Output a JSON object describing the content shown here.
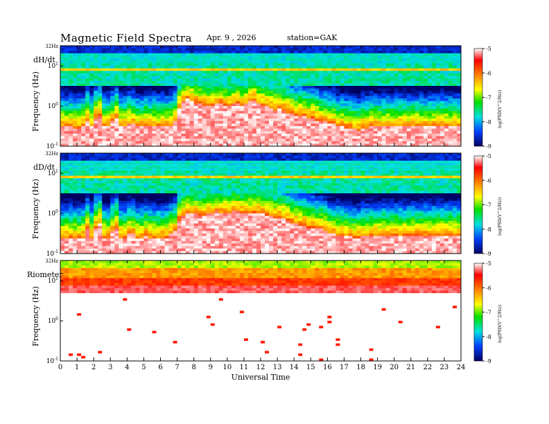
{
  "header": {
    "title": "Magnetic  Field  Spectra",
    "date": "Apr. 9  , 2026",
    "station": "station=GAK"
  },
  "chart_data": [
    {
      "type": "heatmap",
      "panel_label": "dH/dt",
      "ylabel": "Frequency  (Hz)",
      "y_ticks": [
        "32Hz",
        "10^1",
        "10^0",
        "10^-1"
      ],
      "y_scale": "log",
      "ylim": [
        0.1,
        32
      ],
      "xlim": [
        0,
        24
      ],
      "colorbar": {
        "label": "log(PSD(V^2/Hz))",
        "ticks": [
          -5,
          -6,
          -7,
          -8,
          -9
        ],
        "range": [
          -9,
          -5
        ],
        "colormap": "blue-cyan-green-yellow-red-white"
      },
      "cutoff_hz": [
        0.3,
        0.3,
        0.3,
        0.28,
        0.28,
        0.3,
        0.45,
        0.3,
        0.5,
        0.6,
        0.3,
        0.3,
        0.4,
        0.5,
        0.3,
        0.3,
        0.35,
        0.35,
        0.3,
        0.3,
        0.32,
        0.3,
        0.3,
        0.3,
        0.3,
        0.3,
        0.32,
        0.4,
        0.9,
        1.3,
        1.5,
        1.4,
        1.2,
        1.1,
        1.0,
        0.95,
        1.0,
        1.1,
        1.2,
        1.0,
        0.95,
        1.1,
        1.2,
        1.0,
        1.1,
        1.3,
        1.4,
        1.1,
        1.0,
        0.95,
        0.9,
        0.8,
        0.85,
        0.8,
        0.7,
        0.65,
        0.6,
        0.55,
        0.55,
        0.5,
        0.5,
        0.45,
        0.4,
        0.4,
        0.35,
        0.35,
        0.3,
        0.3,
        0.28,
        0.28,
        0.26,
        0.25,
        0.28,
        0.28,
        0.3,
        0.3,
        0.3,
        0.3,
        0.3,
        0.3,
        0.3,
        0.3,
        0.3,
        0.3,
        0.3,
        0.3,
        0.3,
        0.3,
        0.3,
        0.3,
        0.3,
        0.3,
        0.3,
        0.3,
        0.3,
        0.3
      ],
      "bands": {
        "line_8hz": 8,
        "line_11hz": 11,
        "upper_dark_hz": 20
      }
    },
    {
      "type": "heatmap",
      "panel_label": "dD/dt",
      "ylabel": "Frequency  (Hz)",
      "y_ticks": [
        "32Hz",
        "10^1",
        "10^0",
        "10^-1"
      ],
      "y_scale": "log",
      "ylim": [
        0.1,
        32
      ],
      "xlim": [
        0,
        24
      ],
      "colorbar": {
        "label": "log(PSD(V^2/Hz))",
        "ticks": [
          -5,
          -6,
          -7,
          -8,
          -9
        ],
        "range": [
          -9,
          -5
        ],
        "colormap": "blue-cyan-green-yellow-red-white"
      },
      "cutoff_hz": [
        0.25,
        0.25,
        0.25,
        0.24,
        0.24,
        0.25,
        0.4,
        0.25,
        0.45,
        0.55,
        0.25,
        0.25,
        0.35,
        0.45,
        0.25,
        0.25,
        0.3,
        0.3,
        0.25,
        0.25,
        0.28,
        0.25,
        0.25,
        0.25,
        0.25,
        0.25,
        0.3,
        0.35,
        0.7,
        0.9,
        1.0,
        1.0,
        0.95,
        0.9,
        0.9,
        0.95,
        1.0,
        1.1,
        1.0,
        1.0,
        0.95,
        1.1,
        1.1,
        1.0,
        1.0,
        1.0,
        1.05,
        1.0,
        0.95,
        0.9,
        0.85,
        0.8,
        0.8,
        0.75,
        0.65,
        0.6,
        0.55,
        0.5,
        0.5,
        0.45,
        0.45,
        0.4,
        0.4,
        0.35,
        0.3,
        0.3,
        0.28,
        0.28,
        0.26,
        0.26,
        0.24,
        0.24,
        0.26,
        0.26,
        0.28,
        0.28,
        0.28,
        0.28,
        0.28,
        0.28,
        0.28,
        0.28,
        0.28,
        0.28,
        0.28,
        0.28,
        0.28,
        0.28,
        0.28,
        0.28,
        0.28,
        0.28,
        0.28,
        0.28,
        0.28,
        0.28
      ],
      "bands": {
        "line_8hz": 8,
        "line_11hz": 11,
        "upper_dark_hz": 20
      }
    },
    {
      "type": "heatmap",
      "panel_label": "Riometer",
      "ylabel": "Frequency  (Hz)",
      "y_ticks": [
        "32Hz",
        "10^1",
        "10^0",
        "10^-1"
      ],
      "y_scale": "log",
      "ylim": [
        0.1,
        32
      ],
      "xlim": [
        0,
        24
      ],
      "xlabel": "Universal  Time",
      "x_ticks": [
        0,
        1,
        2,
        3,
        4,
        5,
        6,
        7,
        8,
        9,
        10,
        11,
        12,
        13,
        14,
        15,
        16,
        17,
        18,
        19,
        20,
        21,
        22,
        23,
        24
      ],
      "colorbar": {
        "label": "log(PSD(V^2/Hz))",
        "ticks": [
          -5,
          -6,
          -7,
          -8,
          -9
        ],
        "range": [
          -9,
          -5
        ],
        "colormap": "blue-cyan-green-yellow-red-white"
      },
      "bands": {
        "green_top_hz": 20,
        "red_band_hz": 12,
        "fade_hz": 5
      }
    }
  ]
}
